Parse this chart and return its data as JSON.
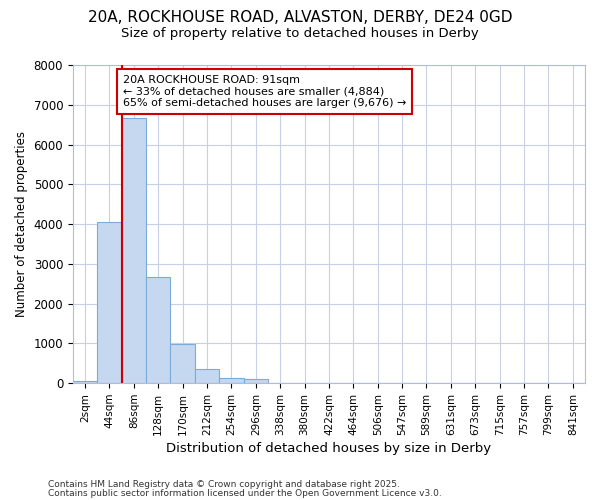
{
  "title_line1": "20A, ROCKHOUSE ROAD, ALVASTON, DERBY, DE24 0GD",
  "title_line2": "Size of property relative to detached houses in Derby",
  "xlabel": "Distribution of detached houses by size in Derby",
  "ylabel": "Number of detached properties",
  "categories": [
    "2sqm",
    "44sqm",
    "86sqm",
    "128sqm",
    "170sqm",
    "212sqm",
    "254sqm",
    "296sqm",
    "338sqm",
    "380sqm",
    "422sqm",
    "464sqm",
    "506sqm",
    "547sqm",
    "589sqm",
    "631sqm",
    "673sqm",
    "715sqm",
    "757sqm",
    "799sqm",
    "841sqm"
  ],
  "values": [
    50,
    4050,
    6680,
    2680,
    980,
    350,
    120,
    100,
    0,
    0,
    0,
    0,
    0,
    0,
    0,
    0,
    0,
    0,
    0,
    0,
    0
  ],
  "bar_color": "#c5d8f0",
  "bar_edge_color": "#7aabdb",
  "property_line_x": 1.5,
  "annotation_text": "20A ROCKHOUSE ROAD: 91sqm\n← 33% of detached houses are smaller (4,884)\n65% of semi-detached houses are larger (9,676) →",
  "annotation_box_color": "#ffffff",
  "annotation_edge_color": "#cc0000",
  "annotation_text_color": "#000000",
  "vline_color": "#cc0000",
  "ylim": [
    0,
    8000
  ],
  "yticks": [
    0,
    1000,
    2000,
    3000,
    4000,
    5000,
    6000,
    7000,
    8000
  ],
  "footer_line1": "Contains HM Land Registry data © Crown copyright and database right 2025.",
  "footer_line2": "Contains public sector information licensed under the Open Government Licence v3.0.",
  "bg_color": "#ffffff",
  "plot_bg_color": "#ffffff",
  "grid_color": "#c8d0e8"
}
